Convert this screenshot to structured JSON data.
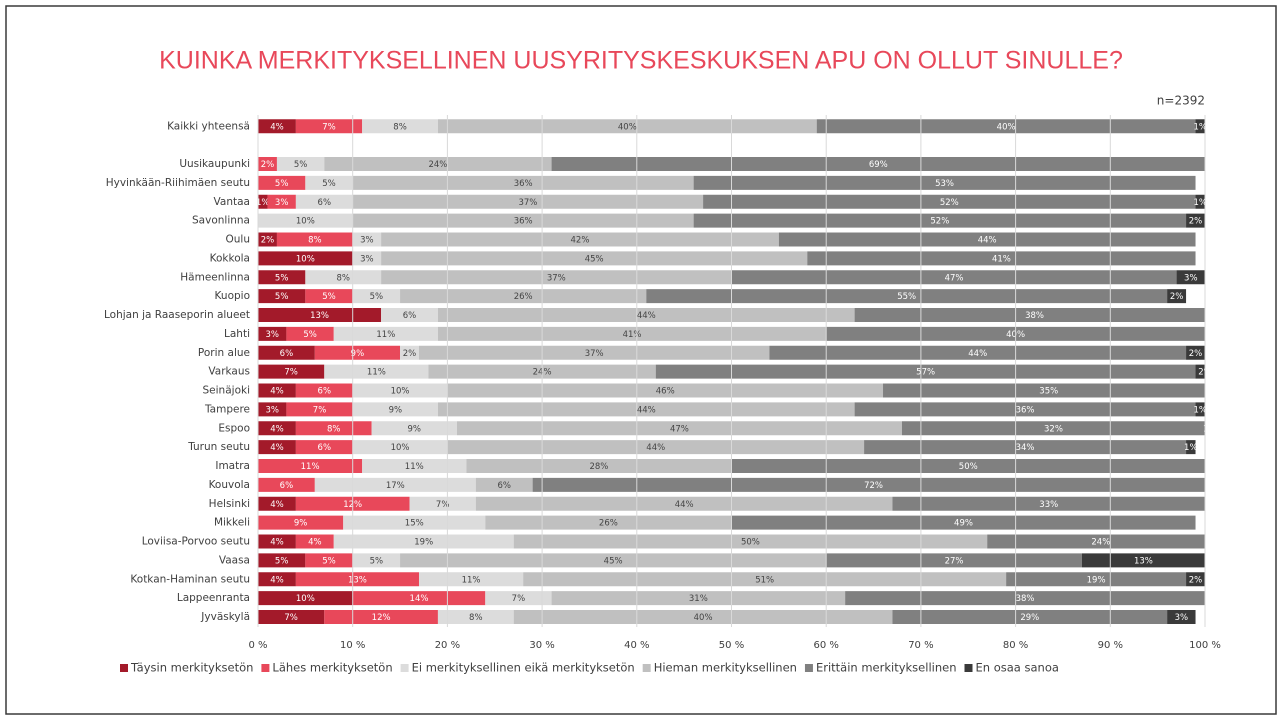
{
  "chart_data": {
    "type": "stacked_barh",
    "title": "KUINKA MERKITYKSELLINEN UUSYRITYSKESKUKSEN APU ON OLLUT SINULLE?",
    "annotation": "n=2392",
    "categories": [
      "Kaikki yhteensä",
      null,
      "Uusikaupunki",
      "Hyvinkään-Riihimäen seutu",
      "Vantaa",
      "Savonlinna",
      "Oulu",
      "Kokkola",
      "Hämeenlinna",
      "Kuopio",
      "Lohjan ja Raaseporin alueet",
      "Lahti",
      "Porin alue",
      "Varkaus",
      "Seinäjoki",
      "Tampere",
      "Espoo",
      "Turun seutu",
      "Imatra",
      "Kouvola",
      "Helsinki",
      "Mikkeli",
      "Loviisa-Porvoo seutu",
      "Vaasa",
      "Kotkan-Haminan seutu",
      "Lappeenranta",
      "Jyväskylä"
    ],
    "series": [
      {
        "name": "Täysin merkityksetön",
        "color": "#a31a2a",
        "values": [
          4,
          null,
          null,
          null,
          1,
          null,
          2,
          10,
          5,
          5,
          13,
          3,
          6,
          7,
          4,
          3,
          4,
          4,
          null,
          null,
          4,
          null,
          4,
          5,
          4,
          10,
          7
        ],
        "value_labels": [
          "4%",
          null,
          null,
          null,
          "1%",
          null,
          "2%",
          "10%",
          "5%",
          "5%",
          "13%",
          "3%",
          "6%",
          "7%",
          "4%",
          "3%",
          "4%",
          "4%",
          null,
          null,
          "4%",
          null,
          "4%",
          "5%",
          "4%",
          "10%",
          "7%"
        ]
      },
      {
        "name": "Lähes merkityksetön",
        "color": "#e8485a",
        "values": [
          7,
          null,
          2,
          5,
          3,
          null,
          8,
          null,
          null,
          5,
          null,
          5,
          9,
          null,
          6,
          7,
          8,
          6,
          11,
          6,
          12,
          9,
          4,
          5,
          13,
          14,
          12
        ],
        "value_labels": [
          "7%",
          null,
          "2%",
          "5%",
          "3%",
          null,
          "8%",
          null,
          null,
          "5%",
          null,
          "5%",
          "9%",
          null,
          "6%",
          "7%",
          "8%",
          "6%",
          "11%",
          "6%",
          "12%",
          "9%",
          "4%",
          "5%",
          "13%",
          "14%",
          "12%"
        ]
      },
      {
        "name": "Ei merkityksellinen eikä merkityksetön",
        "color": "#dcdcdc",
        "values": [
          8,
          null,
          5,
          5,
          6,
          10,
          3,
          3,
          8,
          5,
          6,
          11,
          2,
          11,
          10,
          9,
          9,
          10,
          11,
          17,
          7,
          15,
          19,
          5,
          11,
          7,
          8
        ],
        "value_labels": [
          "8%",
          null,
          "5%",
          "5%",
          "6%",
          "10%",
          "3%",
          "3%",
          "8%",
          "5%",
          "6%",
          "11%",
          "2%",
          "11%",
          "10%",
          "9%",
          "9%",
          "10%",
          "11%",
          "17%",
          "7%",
          "15%",
          "19%",
          "5%",
          "11%",
          "7%",
          "8%"
        ]
      },
      {
        "name": "Hieman merkityksellinen",
        "color": "#c0c0c0",
        "values": [
          40,
          null,
          24,
          36,
          37,
          36,
          42,
          45,
          37,
          26,
          44,
          41,
          37,
          24,
          46,
          44,
          47,
          44,
          28,
          6,
          44,
          26,
          50,
          45,
          51,
          31,
          40
        ],
        "value_labels": [
          "40%",
          null,
          "24%",
          "36%",
          "37%",
          "36%",
          "42%",
          "45%",
          "37%",
          "26%",
          "44%",
          "41%",
          "37%",
          "24%",
          "46%",
          "44%",
          "47%",
          "44%",
          "28%",
          "6%",
          "44%",
          "26%",
          "50%",
          "45%",
          "51%",
          "31%",
          "40%"
        ]
      },
      {
        "name": "Erittäin merkityksellinen",
        "color": "#808080",
        "values": [
          40,
          null,
          69,
          53,
          52,
          52,
          44,
          41,
          47,
          55,
          38,
          40,
          44,
          57,
          35,
          36,
          32,
          34,
          50,
          72,
          33,
          49,
          24,
          27,
          19,
          38,
          29
        ],
        "value_labels": [
          "40%",
          null,
          "69%",
          "53%",
          "52%",
          "52%",
          "44%",
          "41%",
          "47%",
          "55%",
          "38%",
          "40%",
          "44%",
          "57%",
          "35%",
          "36%",
          "32%",
          "34%",
          "50%",
          "72%",
          "33%",
          "49%",
          "24%",
          "27%",
          "19%",
          "38%",
          "29%"
        ]
      },
      {
        "name": "En osaa sanoa",
        "color": "#3a3a3a",
        "values": [
          1,
          null,
          null,
          null,
          1,
          2,
          null,
          null,
          3,
          2,
          null,
          null,
          2,
          2,
          1,
          1,
          1,
          1,
          null,
          null,
          null,
          null,
          null,
          13,
          2,
          null,
          3
        ],
        "value_labels": [
          "1%",
          null,
          null,
          null,
          "1%",
          "2%",
          null,
          null,
          "3%",
          "2%",
          null,
          null,
          "2%",
          "2%",
          "1%",
          "1%",
          "1%",
          "1%",
          null,
          null,
          null,
          null,
          null,
          "13%",
          "2%",
          null,
          "3%"
        ]
      }
    ],
    "xlim": [
      0,
      100
    ],
    "xticks": [
      {
        "value": 0,
        "label": "0 %"
      },
      {
        "value": 10,
        "label": "10 %"
      },
      {
        "value": 20,
        "label": "20 %"
      },
      {
        "value": 30,
        "label": "30 %"
      },
      {
        "value": 40,
        "label": "40 %"
      },
      {
        "value": 50,
        "label": "50 %"
      },
      {
        "value": 60,
        "label": "60 %"
      },
      {
        "value": 70,
        "label": "70 %"
      },
      {
        "value": 80,
        "label": "80 %"
      },
      {
        "value": 90,
        "label": "90 %"
      },
      {
        "value": 100,
        "label": "100 %"
      }
    ],
    "grid": true,
    "legend": "bottom"
  }
}
